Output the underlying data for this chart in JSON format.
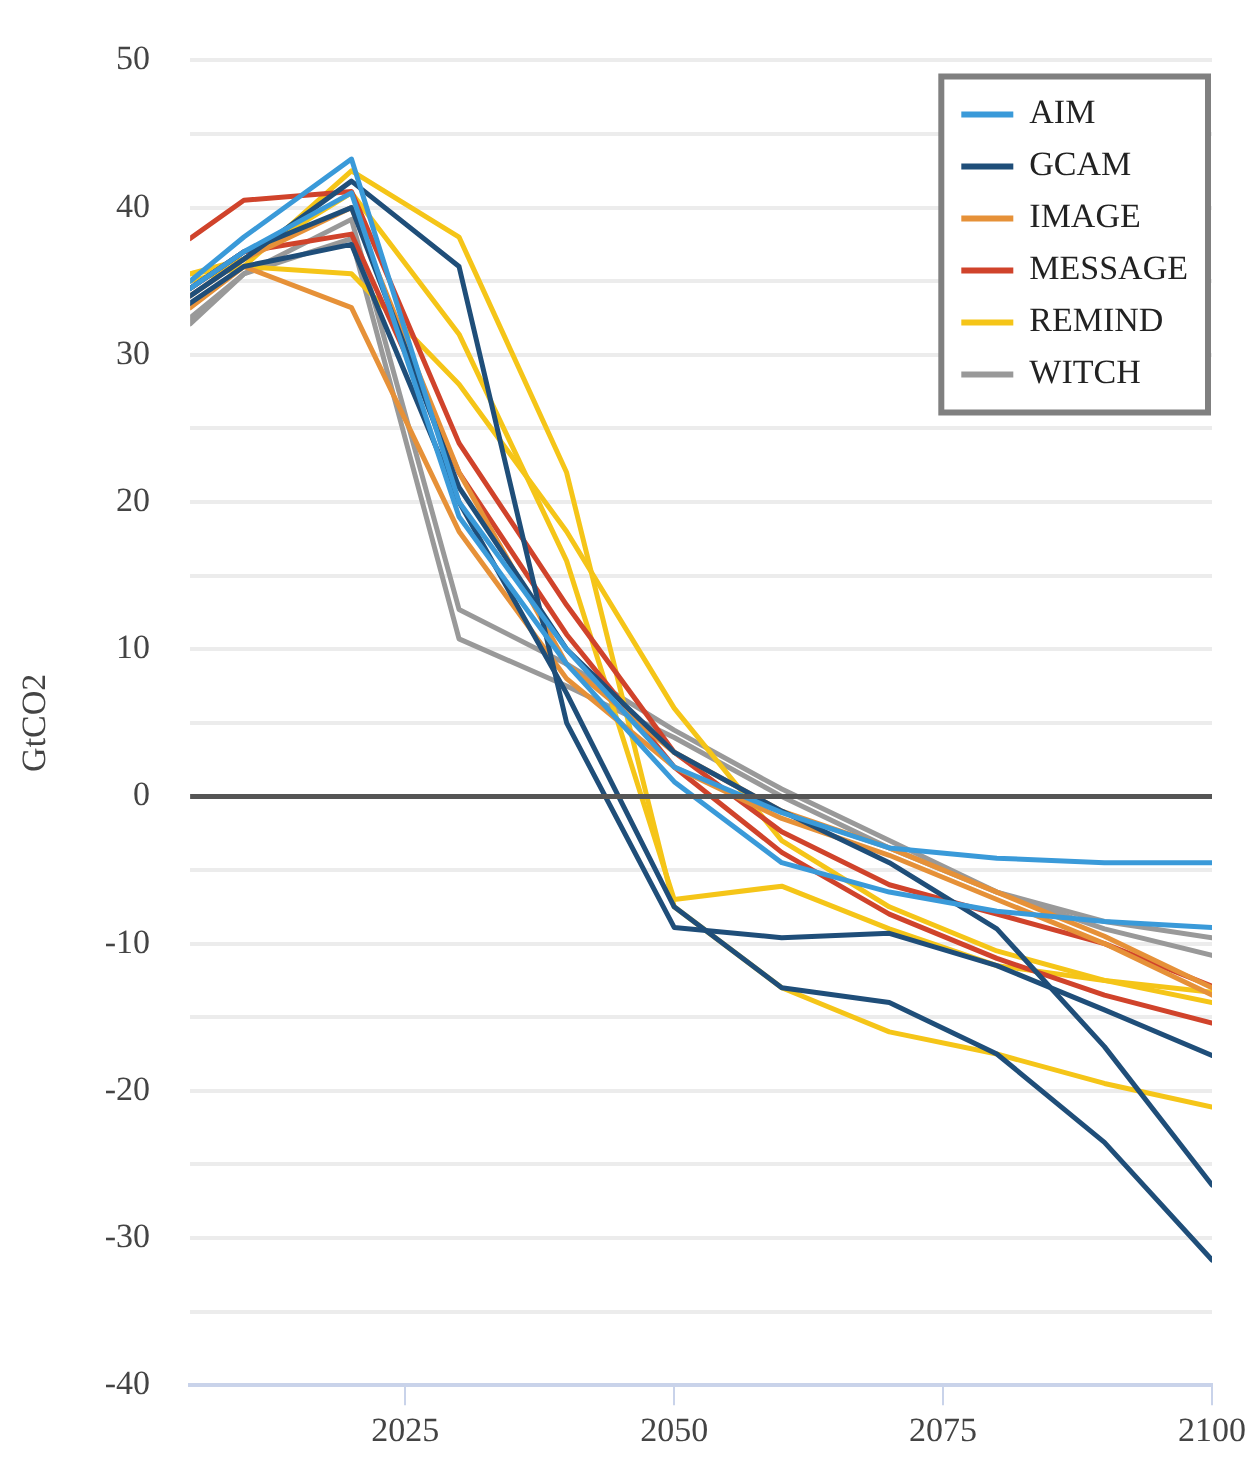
{
  "chart_data": {
    "type": "line",
    "ylabel": "GtCO2",
    "x": [
      2005,
      2010,
      2020,
      2030,
      2040,
      2050,
      2060,
      2070,
      2080,
      2090,
      2100
    ],
    "xlim": [
      2005,
      2100
    ],
    "xticks": [
      2025,
      2050,
      2075,
      2100
    ],
    "ylim": [
      -40,
      50
    ],
    "yticks": [
      -40,
      {
        "value": -35,
        "label": null
      },
      -30,
      {
        "value": -25,
        "label": null
      },
      -20,
      {
        "value": -15,
        "label": null
      },
      -10,
      {
        "value": -5,
        "label": null
      },
      0,
      {
        "value": 5,
        "label": null
      },
      10,
      {
        "value": 15,
        "label": null
      },
      20,
      {
        "value": 25,
        "label": null
      },
      30,
      {
        "value": 35,
        "label": null
      },
      40,
      {
        "value": 45,
        "label": null
      },
      50
    ],
    "grid": "y",
    "legend": "top right",
    "marker": "none",
    "line_style": "solid",
    "ref_lines": [
      {
        "axis": "y",
        "value": 0,
        "color": "#555555"
      }
    ],
    "series": [
      {
        "name": "AIM",
        "color": "#3a9ad9",
        "values": [
          35,
          38,
          43.3,
          20,
          10,
          2,
          -1.1,
          -3.5,
          -4.2,
          -4.5,
          -4.5
        ]
      },
      {
        "color": "#3a9ad9",
        "values": [
          34.5,
          37,
          41,
          19,
          9,
          1,
          -4.5,
          -6.5,
          -7.8,
          -8.5,
          -8.9
        ]
      },
      {
        "name": "GCAM",
        "color": "#1f4e79",
        "values": [
          34,
          36.5,
          41.8,
          36,
          5,
          -8.9,
          -9.6,
          -9.3,
          -11.5,
          -14.5,
          -17.6
        ]
      },
      {
        "color": "#1f4e79",
        "values": [
          33.5,
          36,
          37.5,
          20,
          7,
          -7.5,
          -13,
          -14,
          -17.5,
          -23.5,
          -31.5
        ]
      },
      {
        "color": "#1f4e79",
        "values": [
          34.5,
          37,
          40,
          21,
          10,
          3,
          -1,
          -4.5,
          -9,
          -17,
          -26.4
        ]
      },
      {
        "name": "IMAGE",
        "color": "#e69138",
        "values": [
          33.2,
          36,
          33.2,
          18,
          8,
          2,
          -1.5,
          -4,
          -7,
          -10,
          -13.5
        ]
      },
      {
        "color": "#e69138",
        "values": [
          34,
          36.5,
          40,
          22,
          9,
          3,
          -1,
          -3.5,
          -6.5,
          -9.5,
          -13
        ]
      },
      {
        "name": "MESSAGE",
        "color": "#d0432b",
        "values": [
          37.9,
          40.5,
          41.1,
          24,
          13,
          3,
          -2.4,
          -6,
          -8,
          -10,
          -12.9
        ]
      },
      {
        "color": "#d0432b",
        "values": [
          34.5,
          37,
          38.2,
          22,
          11,
          2,
          -3.8,
          -8,
          -11,
          -13.5,
          -15.4
        ]
      },
      {
        "name": "REMIND",
        "color": "#f5c518",
        "values": [
          35,
          36,
          42.5,
          38,
          22,
          -7.5,
          -13,
          -16,
          -17.5,
          -19.5,
          -21.1
        ]
      },
      {
        "color": "#f5c518",
        "values": [
          35.5,
          36.5,
          41,
          31.4,
          16,
          -7,
          -6.1,
          -9,
          -11.5,
          -12.5,
          -13.3
        ]
      },
      {
        "color": "#f5c518",
        "values": [
          35.5,
          36,
          35.5,
          28,
          18,
          6,
          -3,
          -7.5,
          -10.5,
          -12.5,
          -14
        ]
      },
      {
        "name": "WITCH",
        "color": "#999999",
        "values": [
          32.1,
          35.5,
          37.9,
          10.7,
          7.5,
          4,
          0,
          -3.5,
          -6.5,
          -8.5,
          -9.6
        ]
      },
      {
        "color": "#999999",
        "values": [
          32.5,
          35.5,
          39.2,
          12.7,
          9,
          4.5,
          0.5,
          -3,
          -6.5,
          -9,
          -10.8
        ]
      }
    ]
  }
}
